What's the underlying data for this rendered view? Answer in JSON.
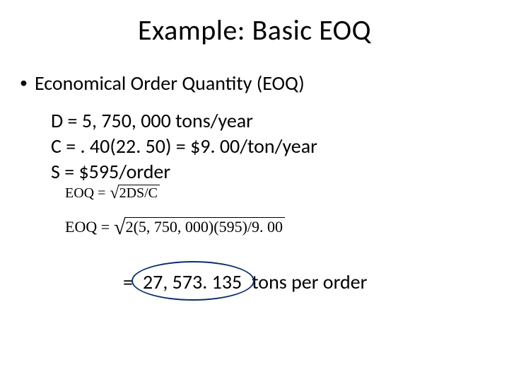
{
  "colors": {
    "text": "#000000",
    "background": "#ffffff",
    "ellipse_stroke": "#0b2f6b"
  },
  "title": "Example:  Basic EOQ",
  "bullet": {
    "marker": "•",
    "text": "Economical Order Quantity (EOQ)"
  },
  "variables": {
    "D": "D = 5, 750, 000 tons/year",
    "C": "C = . 40(22. 50) = $9. 00/ton/year",
    "S": "S = $595/order"
  },
  "formula1": {
    "label": "EOQ =",
    "radicand": "2DS/C"
  },
  "formula2": {
    "label": "EOQ =",
    "radicand": "2(5, 750, 000)(595)/9. 00"
  },
  "answer": {
    "equals": "=",
    "value": "27, 573. 135",
    "unit": "tons per order"
  },
  "typography": {
    "title_fontsize": 40,
    "body_fontsize": 28,
    "formula_fontsize_small": 20,
    "formula_fontsize_large": 22,
    "formula_font": "Times New Roman"
  },
  "ellipse": {
    "width": 170,
    "height": 52,
    "stroke_width": 2
  }
}
